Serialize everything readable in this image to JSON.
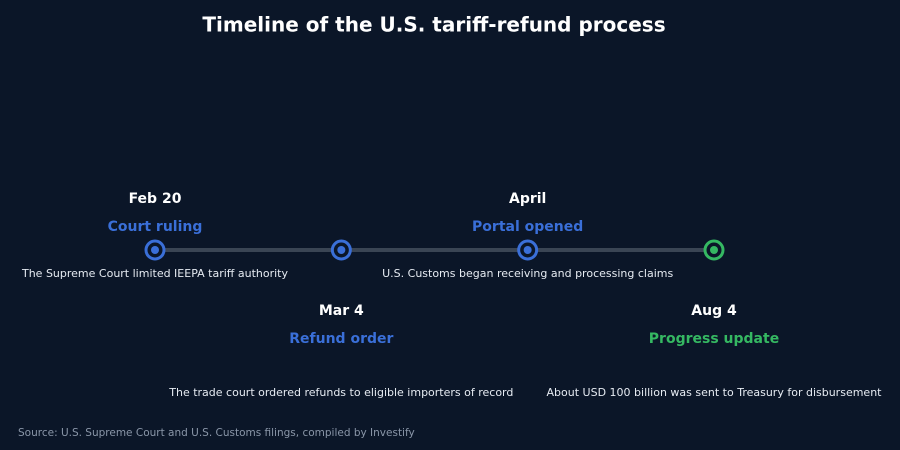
{
  "title": "Timeline of the U.S. tariff-refund process",
  "events": [
    {
      "date": "Feb 20",
      "label": "Court ruling",
      "description": "The Supreme Court limited IEEPA tariff authority",
      "color": "#3a6fd8"
    },
    {
      "date": "Mar 4",
      "label": "Refund order",
      "description": "The trade court ordered refunds to eligible importers of record",
      "color": "#3a6fd8"
    },
    {
      "date": "April",
      "label": "Portal opened",
      "description": "U.S. Customs began receiving and processing claims",
      "color": "#3a6fd8"
    },
    {
      "date": "Aug 4",
      "label": "Progress update",
      "description": "About USD 100 billion was sent to Treasury for disbursement",
      "color": "#35b862"
    }
  ],
  "source": "Source: U.S. Supreme Court and U.S. Customs filings, compiled by Investify"
}
